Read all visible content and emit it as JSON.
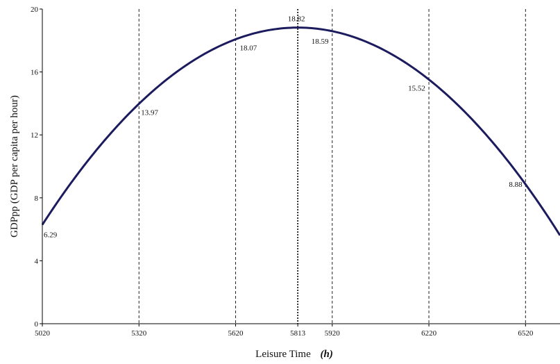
{
  "chart_data": {
    "type": "line",
    "title": "",
    "xlabel": "Leisure Time",
    "xlabel_unit": "h",
    "ylabel": "GDPpp (GDP per capita per hour)",
    "xlim": [
      5020,
      6627
    ],
    "ylim": [
      0,
      20
    ],
    "x_ticks": [
      5020,
      5320,
      5620,
      5813,
      5920,
      6220,
      6520
    ],
    "x_tick_labels": [
      "5020",
      "5320",
      "5620",
      "5813",
      "5920",
      "6220",
      "6520"
    ],
    "y_ticks": [
      0,
      4,
      8,
      12,
      16,
      20
    ],
    "y_tick_labels": [
      "0",
      "4",
      "8",
      "12",
      "16",
      "20"
    ],
    "vertical_lines": [
      5320,
      5620,
      5813,
      5920,
      6220,
      6520
    ],
    "peak_line": 5813,
    "grid": false,
    "curve": {
      "form": "quadratic",
      "vertex_x": 5813,
      "vertex_y": 18.82,
      "x_range": [
        5020,
        6627
      ]
    },
    "labeled_points": [
      {
        "x": 5020,
        "y": 6.29,
        "label": "6.29"
      },
      {
        "x": 5320,
        "y": 13.97,
        "label": "13.97"
      },
      {
        "x": 5620,
        "y": 18.07,
        "label": "18.07"
      },
      {
        "x": 5813,
        "y": 18.82,
        "label": "18.82"
      },
      {
        "x": 5920,
        "y": 18.59,
        "label": "18.59"
      },
      {
        "x": 6220,
        "y": 15.52,
        "label": "15.52"
      },
      {
        "x": 6520,
        "y": 8.88,
        "label": "8.88"
      }
    ]
  },
  "colors": {
    "curve": "#1b1b5e",
    "axes": "#000000",
    "background": "#ffffff"
  }
}
